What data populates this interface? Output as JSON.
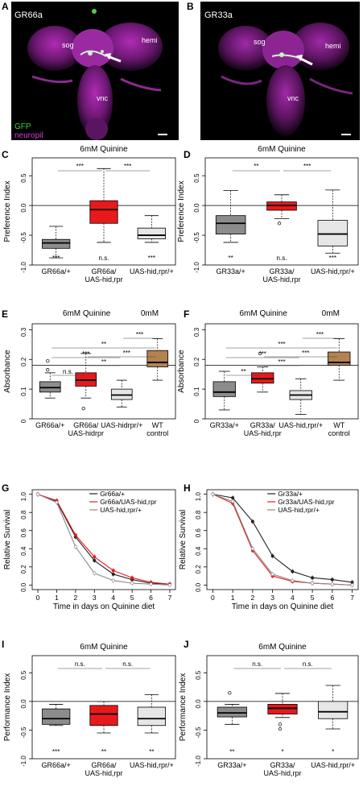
{
  "panels": {
    "A": {
      "letter": "A",
      "title": "GR66a",
      "labels": [
        "sog",
        "hemi",
        "vnc"
      ],
      "legend": [
        "GFP",
        "neuropil"
      ]
    },
    "B": {
      "letter": "B",
      "title": "GR33a",
      "labels": [
        "sog",
        "hemi",
        "vnc"
      ]
    },
    "C": {
      "letter": "C",
      "title": "6mM Quinine",
      "ylabel": "Preference  Index",
      "ticks": [
        "0.5",
        "0.0",
        "-0.5",
        "-1.0"
      ],
      "xlabels": [
        "GR66a/+",
        "GR66a/\nUAS-hid,rpr",
        "UAS-hid,rpr/+"
      ],
      "sig_top": [
        "***",
        "***"
      ],
      "sig_bottom": [
        "***",
        "n.s.",
        "***"
      ]
    },
    "D": {
      "letter": "D",
      "title": "6mM Quinine",
      "ylabel": "Preference  Index",
      "ticks": [
        "0.5",
        "0.0",
        "-0.5",
        "-1.0"
      ],
      "xlabels": [
        "GR33a/+",
        "GR33a/\nUAS-hid,rpr",
        "UAS-hid,rpr/+"
      ],
      "sig_top": [
        "**",
        "***"
      ],
      "sig_bottom": [
        "**",
        "n.s.",
        "***"
      ]
    },
    "E": {
      "letter": "E",
      "title": "6mM Quinine",
      "title2": "0mM",
      "ylabel": "Absorbance",
      "ticks": [
        "0.3",
        "0.2",
        "0.1",
        "0"
      ],
      "xlabels": [
        "GR66a/+",
        "GR66a/\nUAS-hidrpr",
        "UAS-hidrpr/+",
        "WT\ncontrol"
      ],
      "sig": [
        "***",
        "**",
        "***",
        "**",
        "n.s.",
        "***"
      ]
    },
    "F": {
      "letter": "F",
      "title": "6mM Quinine",
      "title2": "0mM",
      "ylabel": "Absorbance",
      "ticks": [
        "0.3",
        "0.2",
        "0.1",
        "0"
      ],
      "xlabels": [
        "GR33a/+",
        "GR33a/\nUAS-hid,rpr",
        "UAS-hid,rpr/+",
        "WT\ncontrol"
      ],
      "sig": [
        "***",
        "***",
        "***",
        "***",
        "**",
        "***"
      ]
    },
    "G": {
      "letter": "G",
      "ylabel": "Relative Survival",
      "xlabel": "Time in days on Quinine diet",
      "legend": [
        "Gr66a/+",
        "Gr66a/UAS-hid,rpr",
        "UAS-hid,rpr/+"
      ],
      "xticks": [
        "0",
        "1",
        "2",
        "3",
        "4",
        "5",
        "6",
        "7"
      ],
      "yticks": [
        "1.0",
        "0.8",
        "0.6",
        "0.4",
        "0.2",
        "0.0"
      ]
    },
    "H": {
      "letter": "H",
      "ylabel": "Relative Survival",
      "xlabel": "Time in days on Quinine diet",
      "legend": [
        "Gr33a/+",
        "Gr33a/UAS-hid,rpr",
        "UAS-hid,rpr/+"
      ],
      "xticks": [
        "0",
        "1",
        "2",
        "3",
        "4",
        "5",
        "6",
        "7"
      ],
      "yticks": [
        "1.0",
        "0.8",
        "0.6",
        "0.4",
        "0.2",
        "0.0"
      ]
    },
    "I": {
      "letter": "I",
      "title": "6mM Quinine",
      "ylabel": "Performance  Index",
      "ticks": [
        "0.5",
        "0.0",
        "-0.5",
        "-1.0"
      ],
      "xlabels": [
        "GR66a/+",
        "GR66a/\nUAS-hid,rpr",
        "UAS-hid,rpr/+"
      ],
      "sig_top": [
        "n.s.",
        "n.s."
      ],
      "sig_bottom": [
        "***",
        "**",
        "**"
      ]
    },
    "J": {
      "letter": "J",
      "title": "6mM Quinine",
      "ylabel": "Performance  Index",
      "ticks": [
        "0.5",
        "0.0",
        "-0.5",
        "-1.0"
      ],
      "xlabels": [
        "GR33a/+",
        "GR33a/\nUAS-hid,rpr",
        "UAS-hid,rpr/+"
      ],
      "sig_top": [
        "n.s.",
        "n.s."
      ],
      "sig_bottom": [
        "**",
        "*",
        "*"
      ]
    }
  },
  "colors": {
    "gray": "#8c8c8c",
    "red": "#e8191b",
    "light": "#e6e6e6",
    "brown": "#b4824e",
    "magenta": "#c239c8",
    "green": "#46d24a",
    "legend_gfp": "#37d23c",
    "legend_neuropil": "#d43cd8"
  },
  "chart_data": [
    {
      "panel": "C",
      "type": "box",
      "categories": [
        "GR66a/+",
        "GR66a/UAS-hid,rpr",
        "UAS-hid,rpr/+"
      ],
      "ylim": [
        -1.0,
        0.8
      ],
      "boxes": [
        {
          "lo": -0.88,
          "q1": -0.72,
          "med": -0.63,
          "q3": -0.57,
          "hi": -0.35,
          "color": "gray",
          "outliers": []
        },
        {
          "lo": -0.62,
          "q1": -0.3,
          "med": -0.07,
          "q3": 0.08,
          "hi": 0.62,
          "color": "red",
          "outliers": []
        },
        {
          "lo": -0.62,
          "q1": -0.56,
          "med": -0.5,
          "q3": -0.38,
          "hi": -0.17,
          "color": "light",
          "outliers": []
        }
      ]
    },
    {
      "panel": "D",
      "type": "box",
      "categories": [
        "GR33a/+",
        "GR33a/UAS-hid,rpr",
        "UAS-hid,rpr/+"
      ],
      "ylim": [
        -1.0,
        0.8
      ],
      "boxes": [
        {
          "lo": -0.62,
          "q1": -0.48,
          "med": -0.3,
          "q3": -0.17,
          "hi": 0.25,
          "color": "gray",
          "outliers": []
        },
        {
          "lo": -0.22,
          "q1": -0.08,
          "med": 0.0,
          "q3": 0.06,
          "hi": 0.18,
          "color": "red",
          "outliers": [
            -0.3
          ]
        },
        {
          "lo": -0.8,
          "q1": -0.68,
          "med": -0.48,
          "q3": -0.25,
          "hi": 0.26,
          "color": "light",
          "outliers": []
        }
      ]
    },
    {
      "panel": "E",
      "type": "box",
      "categories": [
        "GR66a/+",
        "GR66a/UAS-hidrpr",
        "UAS-hidrpr/+",
        "WT control"
      ],
      "ylim": [
        0,
        0.32
      ],
      "reference": 0.18,
      "boxes": [
        {
          "lo": 0.07,
          "q1": 0.09,
          "med": 0.105,
          "q3": 0.125,
          "hi": 0.155,
          "color": "gray",
          "outliers": [
            0.195,
            0.165
          ]
        },
        {
          "lo": 0.07,
          "q1": 0.11,
          "med": 0.13,
          "q3": 0.155,
          "hi": 0.22,
          "color": "red",
          "outliers": [
            0.035
          ]
        },
        {
          "lo": 0.04,
          "q1": 0.065,
          "med": 0.08,
          "q3": 0.1,
          "hi": 0.13,
          "color": "light",
          "outliers": []
        },
        {
          "lo": 0.13,
          "q1": 0.175,
          "med": 0.19,
          "q3": 0.23,
          "hi": 0.27,
          "color": "brown",
          "outliers": []
        }
      ]
    },
    {
      "panel": "F",
      "type": "box",
      "categories": [
        "GR33a/+",
        "GR33a/UAS-hid,rpr",
        "UAS-hid,rpr/+",
        "WT control"
      ],
      "ylim": [
        0,
        0.32
      ],
      "reference": 0.18,
      "boxes": [
        {
          "lo": 0.03,
          "q1": 0.075,
          "med": 0.09,
          "q3": 0.125,
          "hi": 0.16,
          "color": "gray",
          "outliers": []
        },
        {
          "lo": 0.09,
          "q1": 0.12,
          "med": 0.135,
          "q3": 0.155,
          "hi": 0.175,
          "color": "red",
          "outliers": [
            0.22
          ]
        },
        {
          "lo": 0.015,
          "q1": 0.065,
          "med": 0.08,
          "q3": 0.095,
          "hi": 0.135,
          "color": "light",
          "outliers": []
        },
        {
          "lo": 0.13,
          "q1": 0.18,
          "med": 0.19,
          "q3": 0.225,
          "hi": 0.27,
          "color": "brown",
          "outliers": []
        }
      ]
    },
    {
      "panel": "G",
      "type": "line",
      "x": [
        0,
        1,
        2,
        3,
        4,
        5,
        6,
        7
      ],
      "ylim": [
        0,
        1.0
      ],
      "series": [
        {
          "name": "Gr66a/+",
          "color": "#222222",
          "values": [
            1.0,
            0.92,
            0.53,
            0.27,
            0.12,
            0.06,
            0.02,
            0.01
          ]
        },
        {
          "name": "Gr66a/UAS-hid,rpr",
          "color": "#e8191b",
          "values": [
            1.0,
            0.93,
            0.55,
            0.31,
            0.16,
            0.08,
            0.03,
            0.01
          ]
        },
        {
          "name": "UAS-hid,rpr/+",
          "color": "#888888",
          "values": [
            1.0,
            0.91,
            0.42,
            0.13,
            0.05,
            0.02,
            0.01,
            0.0
          ]
        }
      ]
    },
    {
      "panel": "H",
      "type": "line",
      "x": [
        0,
        1,
        2,
        3,
        4,
        5,
        6,
        7
      ],
      "ylim": [
        0,
        1.0
      ],
      "series": [
        {
          "name": "Gr33a/+",
          "color": "#222222",
          "values": [
            1.0,
            0.96,
            0.7,
            0.32,
            0.15,
            0.08,
            0.06,
            0.03
          ]
        },
        {
          "name": "Gr33a/UAS-hid,rpr",
          "color": "#e8191b",
          "values": [
            1.0,
            0.9,
            0.38,
            0.1,
            0.04,
            0.02,
            0.01,
            0.0
          ]
        },
        {
          "name": "UAS-hid,rpr/+",
          "color": "#888888",
          "values": [
            1.0,
            0.92,
            0.4,
            0.12,
            0.05,
            0.02,
            0.01,
            0.0
          ]
        }
      ]
    },
    {
      "panel": "I",
      "type": "box",
      "categories": [
        "GR66a/+",
        "GR66a/UAS-hid,rpr",
        "UAS-hid,rpr/+"
      ],
      "ylim": [
        -1.0,
        0.8
      ],
      "boxes": [
        {
          "lo": -0.42,
          "q1": -0.4,
          "med": -0.3,
          "q3": -0.13,
          "hi": -0.05,
          "color": "gray",
          "outliers": []
        },
        {
          "lo": -0.55,
          "q1": -0.42,
          "med": -0.22,
          "q3": -0.07,
          "hi": 0.0,
          "color": "red",
          "outliers": []
        },
        {
          "lo": -0.55,
          "q1": -0.42,
          "med": -0.3,
          "q3": -0.1,
          "hi": 0.12,
          "color": "light",
          "outliers": []
        }
      ]
    },
    {
      "panel": "J",
      "type": "box",
      "categories": [
        "GR33a/+",
        "GR33a/UAS-hid,rpr",
        "UAS-hid,rpr/+"
      ],
      "ylim": [
        -1.0,
        0.8
      ],
      "boxes": [
        {
          "lo": -0.4,
          "q1": -0.27,
          "med": -0.2,
          "q3": -0.1,
          "hi": -0.05,
          "color": "gray",
          "outliers": [
            0.15
          ]
        },
        {
          "lo": -0.28,
          "q1": -0.22,
          "med": -0.12,
          "q3": -0.05,
          "hi": 0.14,
          "color": "red",
          "outliers": [
            -0.4,
            -0.48
          ]
        },
        {
          "lo": -0.48,
          "q1": -0.3,
          "med": -0.18,
          "q3": 0.0,
          "hi": 0.28,
          "color": "light",
          "outliers": []
        }
      ]
    }
  ]
}
